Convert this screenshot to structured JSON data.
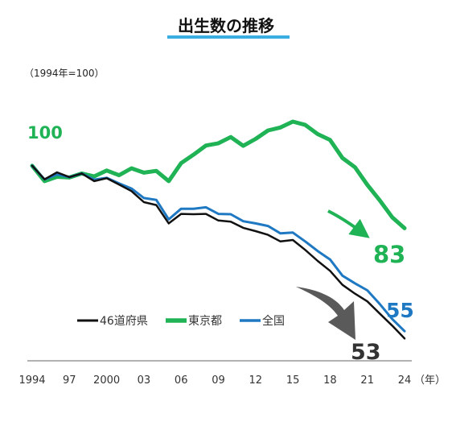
{
  "page": {
    "title": "出生数の推移",
    "base_note": "（1994年=100）",
    "x_unit": "（年）"
  },
  "legend": [
    {
      "label": "46道府県",
      "color": "#111111"
    },
    {
      "label": "東京都",
      "color": "#1fb356"
    },
    {
      "label": "全国",
      "color": "#1e78c2"
    }
  ],
  "chart_data": {
    "type": "line",
    "title": "出生数の推移",
    "xlabel": "（年）",
    "ylabel": "（1994年=100）",
    "x_ticks": [
      "1994",
      "97",
      "2000",
      "03",
      "06",
      "09",
      "12",
      "15",
      "18",
      "21",
      "24"
    ],
    "xlim": [
      1994,
      2024
    ],
    "ylim": [
      50,
      112
    ],
    "series": [
      {
        "name": "46道府県",
        "color": "#111111",
        "x": [
          1994,
          1995,
          1996,
          1997,
          1998,
          1999,
          2000,
          2001,
          2002,
          2003,
          2004,
          2005,
          2006,
          2007,
          2008,
          2009,
          2010,
          2011,
          2012,
          2013,
          2014,
          2015,
          2016,
          2017,
          2018,
          2019,
          2020,
          2021,
          2022,
          2023,
          2024
        ],
        "values": [
          100,
          96.3,
          98.2,
          96.9,
          97.9,
          95.8,
          96.6,
          94.9,
          93.1,
          90.1,
          89.3,
          84.3,
          86.9,
          86.8,
          86.9,
          85.1,
          84.8,
          83.1,
          82.2,
          81.2,
          79.4,
          79.8,
          77.1,
          74.1,
          71.4,
          67.6,
          65.2,
          63.1,
          59.8,
          56.5,
          53
        ]
      },
      {
        "name": "東京都",
        "color": "#1fb356",
        "x": [
          1994,
          1995,
          1996,
          1997,
          1998,
          1999,
          2000,
          2001,
          2002,
          2003,
          2004,
          2005,
          2006,
          2007,
          2008,
          2009,
          2010,
          2011,
          2012,
          2013,
          2014,
          2015,
          2016,
          2017,
          2018,
          2019,
          2020,
          2021,
          2022,
          2023,
          2024
        ],
        "values": [
          100,
          95.8,
          97,
          96.8,
          97.9,
          97.1,
          98.7,
          97.4,
          99.3,
          98.1,
          98.6,
          95.8,
          100.7,
          103,
          105.5,
          106.1,
          107.8,
          105.4,
          107.3,
          109.6,
          110.4,
          112,
          111.1,
          108.6,
          107,
          102.1,
          99.6,
          94.8,
          90.6,
          86,
          83
        ]
      },
      {
        "name": "全国",
        "color": "#1e78c2",
        "x": [
          1994,
          1995,
          1996,
          1997,
          1998,
          1999,
          2000,
          2001,
          2002,
          2003,
          2004,
          2005,
          2006,
          2007,
          2008,
          2009,
          2010,
          2011,
          2012,
          2013,
          2014,
          2015,
          2016,
          2017,
          2018,
          2019,
          2020,
          2021,
          2022,
          2023,
          2024
        ],
        "values": [
          100,
          96.3,
          97.6,
          96.9,
          97.9,
          96.2,
          96.7,
          95.2,
          93.8,
          91.2,
          90.7,
          85.4,
          88.3,
          88.3,
          88.7,
          86.9,
          86.8,
          84.9,
          84.3,
          83.6,
          81.6,
          81.8,
          79.4,
          76.8,
          74.5,
          70.1,
          68,
          66.1,
          62.4,
          58.3,
          55
        ]
      }
    ],
    "end_labels": [
      {
        "series": "東京都",
        "text": "83",
        "color": "#1fb356"
      },
      {
        "series": "全国",
        "text": "55",
        "color": "#1e78c2"
      },
      {
        "series": "46道府県",
        "text": "53",
        "color": "#333333"
      }
    ],
    "start_label": {
      "text": "100",
      "color": "#1fb356"
    },
    "legend_position": "bottom-left",
    "grid": false
  }
}
